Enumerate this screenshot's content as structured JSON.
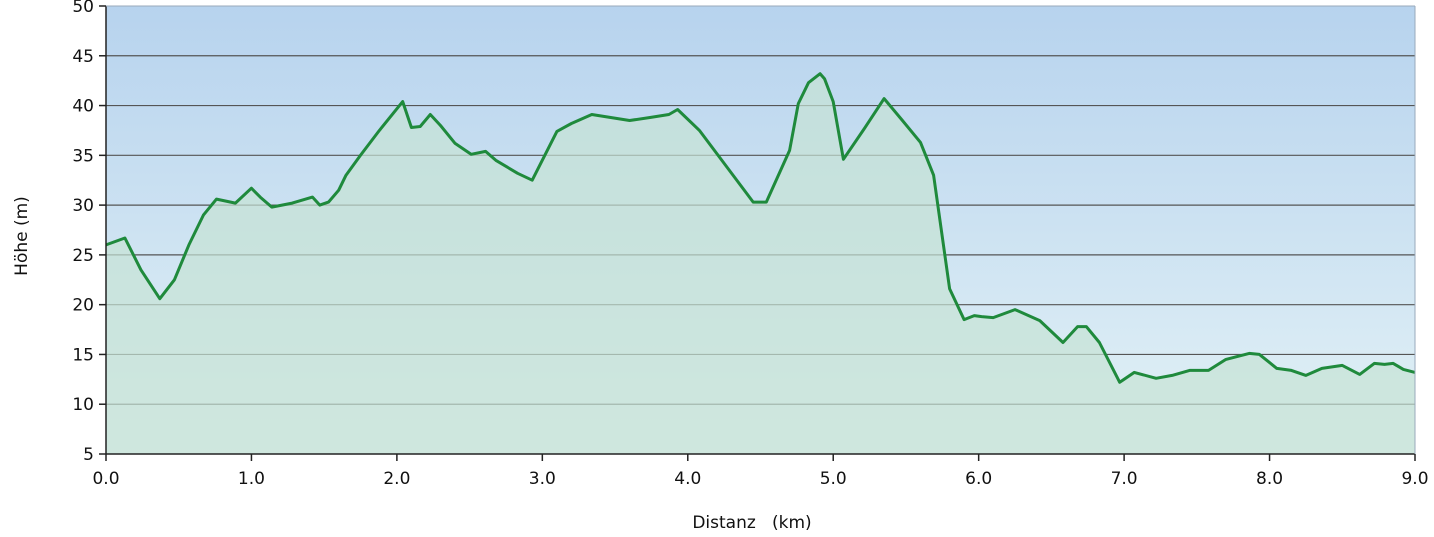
{
  "chart_data": {
    "type": "area",
    "xlabel": "Distanz   (km)",
    "ylabel": "Höhe (m)",
    "xlim": [
      0,
      9
    ],
    "ylim": [
      5,
      50
    ],
    "x_ticks": [
      "0.0",
      "1.0",
      "2.0",
      "3.0",
      "4.0",
      "5.0",
      "6.0",
      "7.0",
      "8.0",
      "9.0"
    ],
    "y_ticks": [
      "5",
      "10",
      "15",
      "20",
      "25",
      "30",
      "35",
      "40",
      "45",
      "50"
    ],
    "grid": "horizontal",
    "colors": {
      "line": "#1f8a3c",
      "fill": "#c6e3d4",
      "background_top": "#b7d3ee",
      "background_bottom": "#e3f2f6",
      "grid": "#555555"
    },
    "series": [
      {
        "values": [
          [
            0.0,
            26.0
          ],
          [
            0.13,
            26.7
          ],
          [
            0.24,
            23.5
          ],
          [
            0.37,
            20.6
          ],
          [
            0.47,
            22.5
          ],
          [
            0.57,
            26.0
          ],
          [
            0.67,
            29.0
          ],
          [
            0.76,
            30.6
          ],
          [
            0.89,
            30.2
          ],
          [
            1.0,
            31.7
          ],
          [
            1.06,
            30.8
          ],
          [
            1.14,
            29.8
          ],
          [
            1.28,
            30.2
          ],
          [
            1.42,
            30.8
          ],
          [
            1.47,
            30.0
          ],
          [
            1.53,
            30.3
          ],
          [
            1.6,
            31.5
          ],
          [
            1.65,
            33.0
          ],
          [
            1.75,
            35.0
          ],
          [
            1.88,
            37.5
          ],
          [
            2.04,
            40.4
          ],
          [
            2.1,
            37.8
          ],
          [
            2.16,
            37.9
          ],
          [
            2.23,
            39.1
          ],
          [
            2.3,
            38.0
          ],
          [
            2.4,
            36.2
          ],
          [
            2.51,
            35.1
          ],
          [
            2.61,
            35.4
          ],
          [
            2.68,
            34.5
          ],
          [
            2.83,
            33.2
          ],
          [
            2.93,
            32.5
          ],
          [
            3.1,
            37.4
          ],
          [
            3.2,
            38.2
          ],
          [
            3.34,
            39.1
          ],
          [
            3.6,
            38.5
          ],
          [
            3.74,
            38.8
          ],
          [
            3.87,
            39.1
          ],
          [
            3.93,
            39.6
          ],
          [
            4.08,
            37.5
          ],
          [
            4.45,
            30.3
          ],
          [
            4.54,
            30.3
          ],
          [
            4.7,
            35.5
          ],
          [
            4.76,
            40.2
          ],
          [
            4.83,
            42.3
          ],
          [
            4.91,
            43.2
          ],
          [
            4.94,
            42.7
          ],
          [
            5.0,
            40.4
          ],
          [
            5.07,
            34.6
          ],
          [
            5.21,
            37.6
          ],
          [
            5.35,
            40.7
          ],
          [
            5.47,
            38.6
          ],
          [
            5.6,
            36.3
          ],
          [
            5.69,
            33.0
          ],
          [
            5.8,
            21.6
          ],
          [
            5.9,
            18.5
          ],
          [
            5.97,
            18.9
          ],
          [
            6.02,
            18.8
          ],
          [
            6.1,
            18.7
          ],
          [
            6.25,
            19.5
          ],
          [
            6.42,
            18.4
          ],
          [
            6.58,
            16.2
          ],
          [
            6.68,
            17.8
          ],
          [
            6.74,
            17.8
          ],
          [
            6.83,
            16.2
          ],
          [
            6.97,
            12.2
          ],
          [
            7.07,
            13.2
          ],
          [
            7.22,
            12.6
          ],
          [
            7.33,
            12.9
          ],
          [
            7.45,
            13.4
          ],
          [
            7.58,
            13.4
          ],
          [
            7.7,
            14.5
          ],
          [
            7.86,
            15.1
          ],
          [
            7.93,
            15.0
          ],
          [
            8.05,
            13.6
          ],
          [
            8.15,
            13.4
          ],
          [
            8.25,
            12.9
          ],
          [
            8.36,
            13.6
          ],
          [
            8.5,
            13.9
          ],
          [
            8.62,
            13.0
          ],
          [
            8.72,
            14.1
          ],
          [
            8.79,
            14.0
          ],
          [
            8.85,
            14.1
          ],
          [
            8.92,
            13.5
          ],
          [
            9.0,
            13.2
          ]
        ]
      }
    ]
  }
}
